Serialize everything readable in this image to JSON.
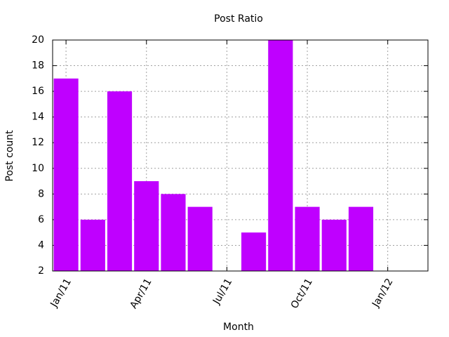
{
  "chart_data": {
    "type": "bar",
    "title": "Post Ratio",
    "x_label": "Month",
    "y_label": "Post count",
    "categories": [
      "Jan/11",
      null,
      null,
      "Apr/11",
      null,
      null,
      "Jul/11",
      null,
      null,
      "Oct/11",
      null,
      null,
      "Jan/12",
      null
    ],
    "values": [
      17,
      6,
      16,
      9,
      8,
      7,
      null,
      5,
      20,
      7,
      6,
      7,
      null,
      null
    ],
    "color": "#bf00ff",
    "ylim": [
      2,
      20
    ],
    "yticks": [
      2,
      4,
      6,
      8,
      10,
      12,
      14,
      16,
      18,
      20
    ],
    "grid": true
  }
}
